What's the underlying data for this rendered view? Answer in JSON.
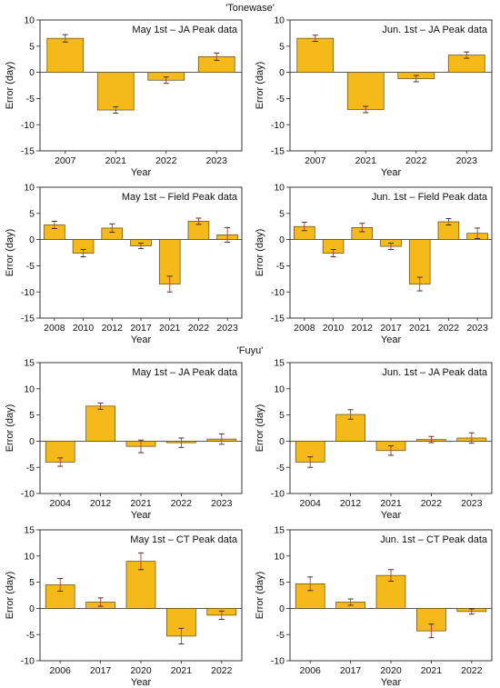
{
  "sections": [
    "'Tonewase'",
    "'Fuyu'"
  ],
  "colors": {
    "bar": "#f5b919",
    "bar_edge": "#5a4a10",
    "error": "#c0392b"
  },
  "chart_data": [
    {
      "type": "bar",
      "title": "May 1st – JA Peak data",
      "xlabel": "Year",
      "ylabel": "Error (day)",
      "ylim": [
        -15,
        10
      ],
      "yticks": [
        10,
        5,
        0,
        -5,
        -10,
        -15
      ],
      "categories": [
        "2007",
        "2021",
        "2022",
        "2023"
      ],
      "values": [
        6.5,
        -7.2,
        -1.5,
        3.0
      ],
      "errors": [
        0.7,
        0.6,
        0.6,
        0.7
      ]
    },
    {
      "type": "bar",
      "title": "Jun. 1st – JA Peak data",
      "xlabel": "Year",
      "ylabel": "Error (day)",
      "ylim": [
        -15,
        10
      ],
      "yticks": [
        10,
        5,
        0,
        -5,
        -10,
        -15
      ],
      "categories": [
        "2007",
        "2021",
        "2022",
        "2023"
      ],
      "values": [
        6.5,
        -7.1,
        -1.2,
        3.3
      ],
      "errors": [
        0.6,
        0.6,
        0.6,
        0.6
      ]
    },
    {
      "type": "bar",
      "title": "May 1st – Field Peak data",
      "xlabel": "Year",
      "ylabel": "Error (day)",
      "ylim": [
        -15,
        10
      ],
      "yticks": [
        10,
        5,
        0,
        -5,
        -10,
        -15
      ],
      "categories": [
        "2008",
        "2010",
        "2012",
        "2017",
        "2021",
        "2022",
        "2023"
      ],
      "values": [
        2.8,
        -2.6,
        2.2,
        -1.2,
        -8.5,
        3.5,
        0.9
      ],
      "errors": [
        0.7,
        0.7,
        0.8,
        0.5,
        1.5,
        0.6,
        1.4
      ]
    },
    {
      "type": "bar",
      "title": "Jun. 1st – Field Peak data",
      "xlabel": "Year",
      "ylabel": "Error (day)",
      "ylim": [
        -15,
        10
      ],
      "yticks": [
        10,
        5,
        0,
        -5,
        -10,
        -15
      ],
      "categories": [
        "2008",
        "2010",
        "2012",
        "2017",
        "2021",
        "2022",
        "2023"
      ],
      "values": [
        2.5,
        -2.6,
        2.3,
        -1.3,
        -8.5,
        3.4,
        1.2
      ],
      "errors": [
        0.8,
        0.7,
        0.8,
        0.6,
        1.3,
        0.6,
        1.0
      ]
    },
    {
      "type": "bar",
      "title": "May 1st – JA Peak data",
      "xlabel": "Year",
      "ylabel": "Error (day)",
      "ylim": [
        -10,
        15
      ],
      "yticks": [
        15,
        10,
        5,
        0,
        -5,
        -10
      ],
      "categories": [
        "2004",
        "2012",
        "2021",
        "2022",
        "2023"
      ],
      "values": [
        -4.0,
        6.7,
        -1.0,
        -0.3,
        0.4
      ],
      "errors": [
        0.8,
        0.6,
        1.2,
        0.9,
        1.0
      ]
    },
    {
      "type": "bar",
      "title": "Jun. 1st – JA Peak data",
      "xlabel": "Year",
      "ylabel": "Error (day)",
      "ylim": [
        -10,
        15
      ],
      "yticks": [
        15,
        10,
        5,
        0,
        -5,
        -10
      ],
      "categories": [
        "2004",
        "2012",
        "2021",
        "2022",
        "2023"
      ],
      "values": [
        -4.0,
        5.1,
        -1.8,
        0.3,
        0.6
      ],
      "errors": [
        1.0,
        0.9,
        0.9,
        0.6,
        1.0
      ]
    },
    {
      "type": "bar",
      "title": "May 1st – CT Peak data",
      "xlabel": "Year",
      "ylabel": "Error (day)",
      "ylim": [
        -10,
        15
      ],
      "yticks": [
        15,
        10,
        5,
        0,
        -5,
        -10
      ],
      "categories": [
        "2006",
        "2017",
        "2020",
        "2021",
        "2022"
      ],
      "values": [
        4.5,
        1.2,
        9.0,
        -5.3,
        -1.3
      ],
      "errors": [
        1.2,
        0.8,
        1.6,
        1.5,
        0.8
      ]
    },
    {
      "type": "bar",
      "title": "Jun. 1st – CT Peak data",
      "xlabel": "Year",
      "ylabel": "Error (day)",
      "ylim": [
        -10,
        15
      ],
      "yticks": [
        15,
        10,
        5,
        0,
        -5,
        -10
      ],
      "categories": [
        "2006",
        "2017",
        "2020",
        "2021",
        "2022"
      ],
      "values": [
        4.7,
        1.2,
        6.3,
        -4.3,
        -0.6
      ],
      "errors": [
        1.3,
        0.6,
        1.1,
        1.3,
        0.5
      ]
    }
  ]
}
